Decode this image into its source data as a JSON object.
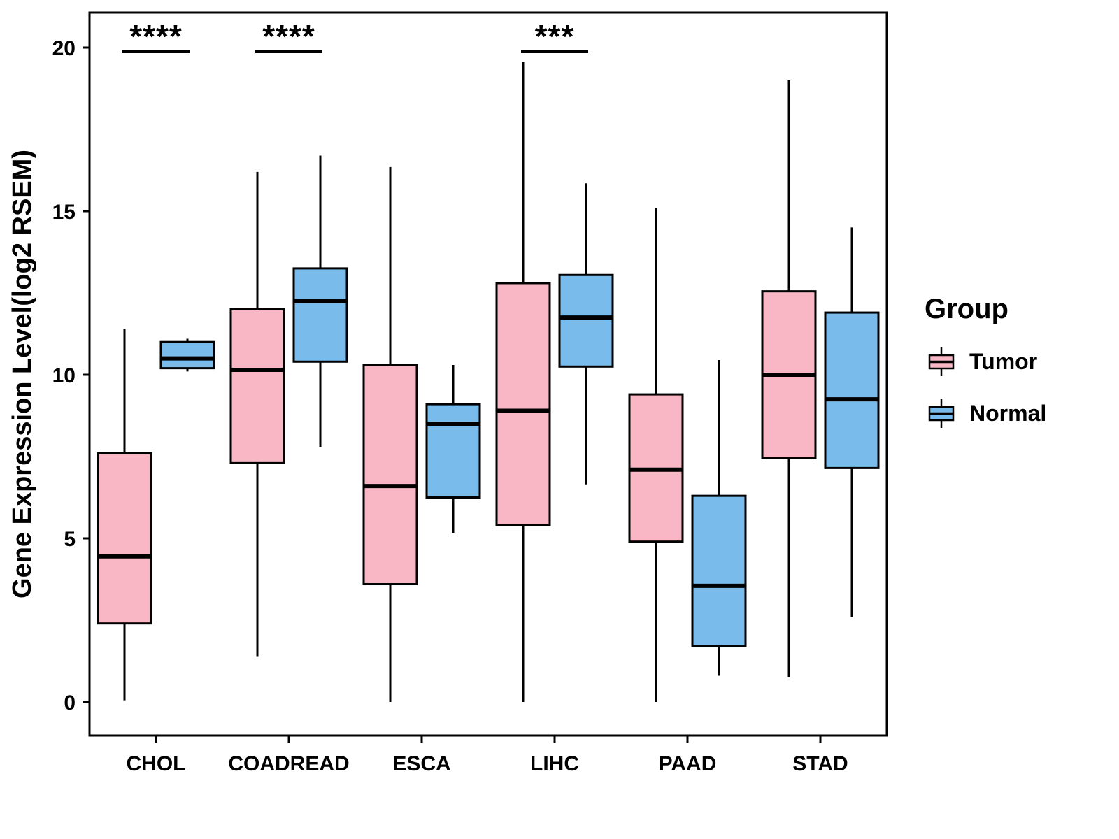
{
  "chart_data": {
    "type": "boxplot",
    "title": "",
    "xlabel": "",
    "ylabel": "Gene Expression Level(log2 RSEM)",
    "ylim": [
      0,
      20
    ],
    "yticks": [
      0,
      5,
      10,
      15,
      20
    ],
    "grid": false,
    "legend_position": "right",
    "categories": [
      "CHOL",
      "COADREAD",
      "ESCA",
      "LIHC",
      "PAAD",
      "STAD"
    ],
    "series": [
      {
        "name": "Tumor",
        "color": "#F9B7C5",
        "boxes": [
          {
            "low": 0.05,
            "q1": 2.4,
            "median": 4.45,
            "q3": 7.6,
            "high": 11.4
          },
          {
            "low": 1.4,
            "q1": 7.3,
            "median": 10.15,
            "q3": 12.0,
            "high": 16.2
          },
          {
            "low": 0.0,
            "q1": 3.6,
            "median": 6.6,
            "q3": 10.3,
            "high": 16.35
          },
          {
            "low": 0.0,
            "q1": 5.4,
            "median": 8.9,
            "q3": 12.8,
            "high": 19.55
          },
          {
            "low": 0.0,
            "q1": 4.9,
            "median": 7.1,
            "q3": 9.4,
            "high": 15.1
          },
          {
            "low": 0.75,
            "q1": 7.45,
            "median": 10.0,
            "q3": 12.55,
            "high": 19.0
          }
        ]
      },
      {
        "name": "Normal",
        "color": "#79BCEC",
        "boxes": [
          {
            "low": 10.1,
            "q1": 10.2,
            "median": 10.5,
            "q3": 11.0,
            "high": 11.1
          },
          {
            "low": 7.8,
            "q1": 10.4,
            "median": 12.25,
            "q3": 13.25,
            "high": 16.7
          },
          {
            "low": 5.15,
            "q1": 6.25,
            "median": 8.5,
            "q3": 9.1,
            "high": 10.3
          },
          {
            "low": 6.65,
            "q1": 10.25,
            "median": 11.75,
            "q3": 13.05,
            "high": 15.85
          },
          {
            "low": 0.8,
            "q1": 1.7,
            "median": 3.55,
            "q3": 6.3,
            "high": 10.45
          },
          {
            "low": 2.6,
            "q1": 7.15,
            "median": 9.25,
            "q3": 11.9,
            "high": 14.5
          }
        ]
      }
    ],
    "significance": [
      {
        "category": "CHOL",
        "label": "****"
      },
      {
        "category": "COADREAD",
        "label": "****"
      },
      {
        "category": "LIHC",
        "label": "***"
      }
    ],
    "legend": {
      "title": "Group",
      "items": [
        {
          "label": "Tumor"
        },
        {
          "label": "Normal"
        }
      ]
    }
  }
}
